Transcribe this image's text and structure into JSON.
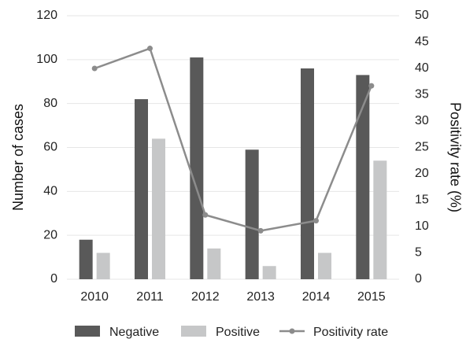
{
  "chart_data": {
    "type": "bar",
    "categories": [
      "2010",
      "2011",
      "2012",
      "2013",
      "2014",
      "2015"
    ],
    "series": [
      {
        "name": "Negative",
        "type": "bar",
        "axis": "left",
        "color": "#595959",
        "values": [
          18,
          82,
          101,
          59,
          96,
          93
        ]
      },
      {
        "name": "Positive",
        "type": "bar",
        "axis": "left",
        "color": "#c6c7c8",
        "values": [
          12,
          64,
          14,
          6,
          12,
          54
        ]
      },
      {
        "name": "Positivity rate",
        "type": "line",
        "axis": "right",
        "color": "#8c8c8c",
        "values": [
          40.0,
          43.8,
          12.2,
          9.2,
          11.1,
          36.7
        ]
      }
    ],
    "ylabel": "Number of cases",
    "ylim": [
      0,
      120
    ],
    "yticks": [
      "0",
      "20",
      "40",
      "60",
      "80",
      "100",
      "120"
    ],
    "y2label": "Positivity rate (%)",
    "y2lim": [
      0,
      50
    ],
    "y2ticks": [
      "0",
      "5",
      "10",
      "15",
      "20",
      "25",
      "30",
      "35",
      "40",
      "45",
      "50"
    ],
    "grid": true,
    "legend": "bottom"
  }
}
